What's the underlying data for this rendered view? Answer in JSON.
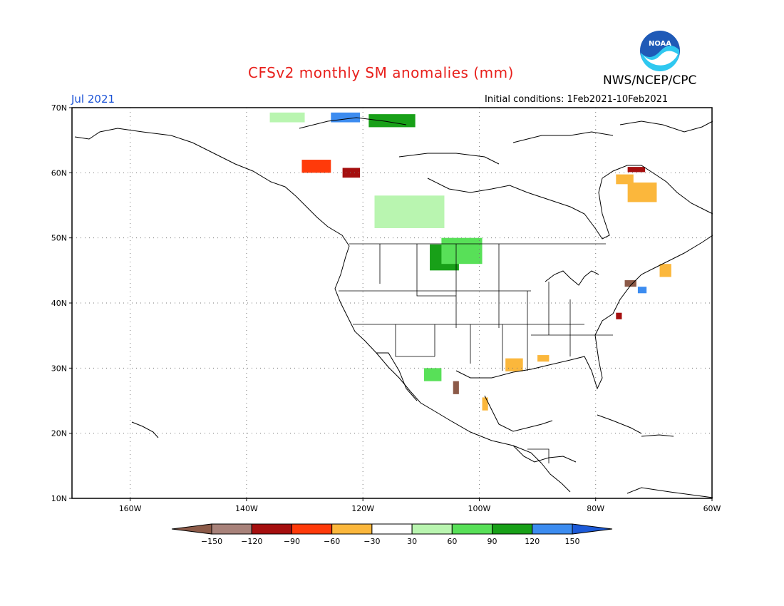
{
  "header": {
    "title": "CFSv2 monthly SM anomalies (mm)",
    "agency": "NWS/NCEP/CPC",
    "logo_text": "NOAA",
    "month": "Jul 2021",
    "initial_conditions": "Initial conditions: 1Feb2021-10Feb2021"
  },
  "map": {
    "extent": {
      "lon_min": -170,
      "lon_max": -60,
      "lat_min": 10,
      "lat_max": 70
    },
    "lat_ticks": [
      {
        "value": 70,
        "label": "70N"
      },
      {
        "value": 60,
        "label": "60N"
      },
      {
        "value": 50,
        "label": "50N"
      },
      {
        "value": 40,
        "label": "40N"
      },
      {
        "value": 30,
        "label": "30N"
      },
      {
        "value": 20,
        "label": "20N"
      },
      {
        "value": 10,
        "label": "10N"
      }
    ],
    "lon_ticks": [
      {
        "value": -160,
        "label": "160W"
      },
      {
        "value": -140,
        "label": "140W"
      },
      {
        "value": -120,
        "label": "120W"
      },
      {
        "value": -100,
        "label": "100W"
      },
      {
        "value": -80,
        "label": "80W"
      },
      {
        "value": -60,
        "label": "60W"
      }
    ]
  },
  "legend": {
    "colors": [
      "#8c5a48",
      "#a8827a",
      "#a50f0f",
      "#ff3a0a",
      "#fbb73c",
      "#ffffff",
      "#b9f5b0",
      "#58e058",
      "#18a018",
      "#3c8cf0",
      "#1c5ad8"
    ],
    "labels": [
      "-150",
      "-120",
      "-90",
      "-60",
      "-30",
      "30",
      "60",
      "90",
      "120",
      "150"
    ]
  },
  "anomalies": [
    {
      "lon": -106,
      "lat": 47,
      "w": 5,
      "h": 4,
      "class": 8
    },
    {
      "lon": -103,
      "lat": 48,
      "w": 7,
      "h": 4,
      "class": 7
    },
    {
      "lon": -112,
      "lat": 54,
      "w": 12,
      "h": 5,
      "class": 6
    },
    {
      "lon": -115,
      "lat": 68,
      "w": 8,
      "h": 2,
      "class": 8
    },
    {
      "lon": -123,
      "lat": 68.5,
      "w": 5,
      "h": 1.5,
      "class": 9
    },
    {
      "lon": -133,
      "lat": 68.5,
      "w": 6,
      "h": 1.5,
      "class": 6
    },
    {
      "lon": -128,
      "lat": 61,
      "w": 5,
      "h": 2,
      "class": 3
    },
    {
      "lon": -122,
      "lat": 60,
      "w": 3,
      "h": 1.5,
      "class": 2
    },
    {
      "lon": -72,
      "lat": 57,
      "w": 5,
      "h": 3,
      "class": 4
    },
    {
      "lon": -75,
      "lat": 59,
      "w": 3,
      "h": 1.5,
      "class": 4
    },
    {
      "lon": -73,
      "lat": 60.5,
      "w": 3,
      "h": 0.8,
      "class": 2
    },
    {
      "lon": -94,
      "lat": 30.5,
      "w": 3,
      "h": 2,
      "class": 4
    },
    {
      "lon": -89,
      "lat": 31.5,
      "w": 2,
      "h": 1,
      "class": 4
    },
    {
      "lon": -99,
      "lat": 24.5,
      "w": 1,
      "h": 2,
      "class": 4
    },
    {
      "lon": -74,
      "lat": 43,
      "w": 2,
      "h": 1,
      "class": 0
    },
    {
      "lon": -76,
      "lat": 38,
      "w": 1,
      "h": 1,
      "class": 2
    },
    {
      "lon": -68,
      "lat": 45,
      "w": 2,
      "h": 2,
      "class": 4
    },
    {
      "lon": -72,
      "lat": 42,
      "w": 1.5,
      "h": 1,
      "class": 9
    },
    {
      "lon": -108,
      "lat": 29,
      "w": 3,
      "h": 2,
      "class": 7
    },
    {
      "lon": -104,
      "lat": 27,
      "w": 1,
      "h": 2,
      "class": 0
    }
  ]
}
